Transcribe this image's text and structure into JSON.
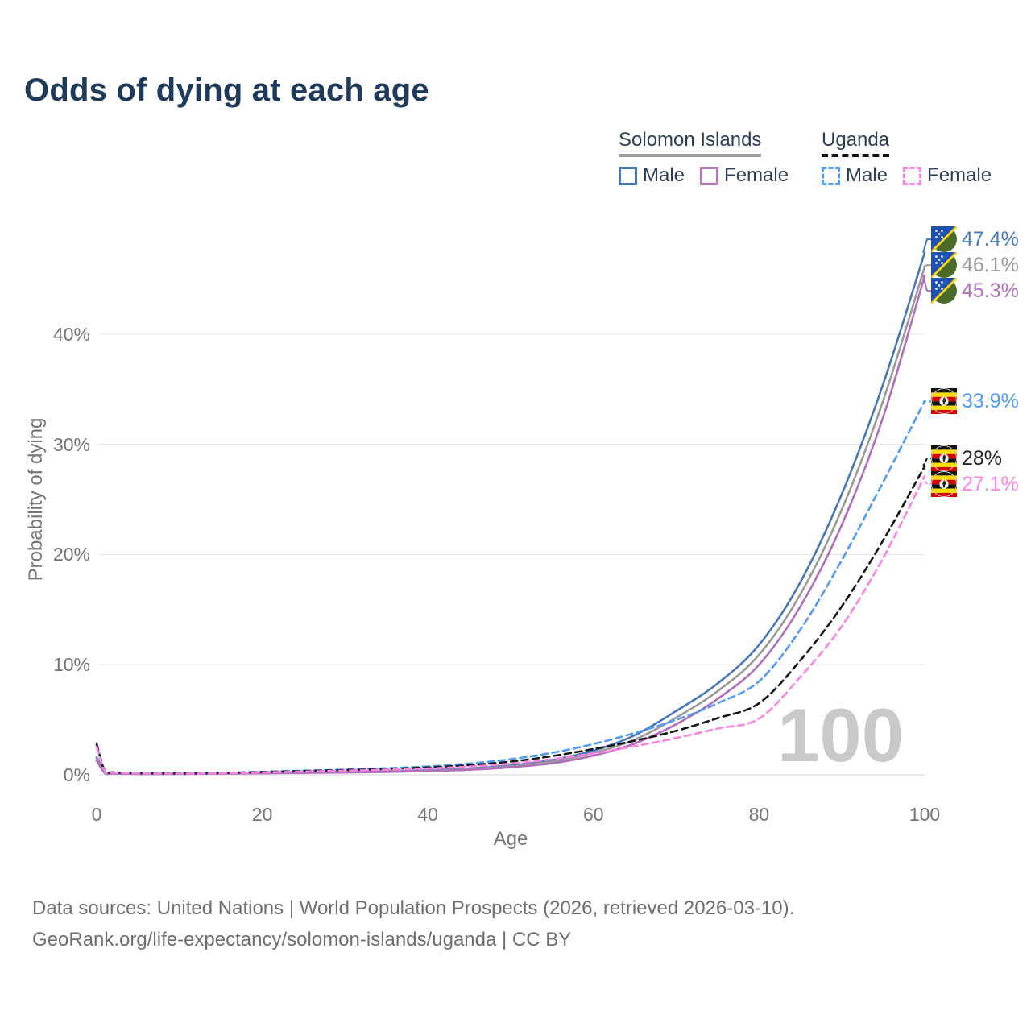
{
  "header": {
    "title": "Odds of dying at each age"
  },
  "legend": {
    "groups": [
      {
        "country": "Solomon Islands",
        "line_style": "solid",
        "underline_color": "#9e9e9e",
        "items": [
          {
            "label": "Male",
            "color": "#4577bd",
            "dashed": false
          },
          {
            "label": "Female",
            "color": "#b679b6",
            "dashed": false
          }
        ]
      },
      {
        "country": "Uganda",
        "line_style": "dashed",
        "underline_color": "#111111",
        "items": [
          {
            "label": "Male",
            "color": "#4f9bf7",
            "dashed": true
          },
          {
            "label": "Female",
            "color": "#ff82e2",
            "dashed": true
          }
        ]
      }
    ]
  },
  "chart_data": {
    "type": "line",
    "title": "Odds of dying at each age",
    "xlabel": "Age",
    "ylabel": "Probability of dying",
    "xlim": [
      0,
      100
    ],
    "ylim": [
      0,
      48
    ],
    "x_ticks": [
      {
        "label": "0",
        "value": 0
      },
      {
        "label": "20",
        "value": 20
      },
      {
        "label": "40",
        "value": 40
      },
      {
        "label": "60",
        "value": 60
      },
      {
        "label": "80",
        "value": 80
      },
      {
        "label": "100",
        "value": 100
      }
    ],
    "y_ticks": [
      {
        "label": "0%",
        "value": 0
      },
      {
        "label": "10%",
        "value": 10
      },
      {
        "label": "20%",
        "value": 20
      },
      {
        "label": "30%",
        "value": 30
      },
      {
        "label": "40%",
        "value": 40
      }
    ],
    "grid": "horizontal",
    "legend_position": "top-right",
    "watermark": "100",
    "series": [
      {
        "name": "Solomon Islands — Male",
        "country": "Solomon Islands",
        "sex": "Male",
        "style": "solid",
        "color": "#4577bd",
        "label_color": "#4577bd",
        "flag": "solomon-islands",
        "end_label": "47.4%",
        "end_value": 47.4,
        "points": [
          [
            0,
            1.6
          ],
          [
            1,
            0.2
          ],
          [
            2,
            0.14
          ],
          [
            5,
            0.1
          ],
          [
            10,
            0.1
          ],
          [
            15,
            0.13
          ],
          [
            20,
            0.18
          ],
          [
            25,
            0.22
          ],
          [
            30,
            0.27
          ],
          [
            35,
            0.33
          ],
          [
            40,
            0.42
          ],
          [
            45,
            0.58
          ],
          [
            50,
            0.85
          ],
          [
            55,
            1.35
          ],
          [
            60,
            2.2
          ],
          [
            65,
            3.6
          ],
          [
            70,
            5.8
          ],
          [
            75,
            8.3
          ],
          [
            80,
            11.8
          ],
          [
            85,
            17.5
          ],
          [
            90,
            25.5
          ],
          [
            95,
            35.5
          ],
          [
            100,
            47.4
          ]
        ]
      },
      {
        "name": "Solomon Islands — Both sexes",
        "country": "Solomon Islands",
        "sex": "Both sexes",
        "style": "solid",
        "color": "#9a9a9a",
        "label_color": "#9a9a9a",
        "flag": "solomon-islands",
        "end_label": "46.1%",
        "end_value": 46.1,
        "points": [
          [
            0,
            1.45
          ],
          [
            1,
            0.18
          ],
          [
            2,
            0.13
          ],
          [
            5,
            0.09
          ],
          [
            10,
            0.09
          ],
          [
            15,
            0.12
          ],
          [
            20,
            0.16
          ],
          [
            25,
            0.2
          ],
          [
            30,
            0.24
          ],
          [
            35,
            0.3
          ],
          [
            40,
            0.38
          ],
          [
            45,
            0.52
          ],
          [
            50,
            0.77
          ],
          [
            55,
            1.2
          ],
          [
            60,
            2.0
          ],
          [
            65,
            3.2
          ],
          [
            70,
            5.2
          ],
          [
            75,
            7.6
          ],
          [
            80,
            10.9
          ],
          [
            85,
            16.4
          ],
          [
            90,
            24.1
          ],
          [
            95,
            34.0
          ],
          [
            100,
            46.1
          ]
        ]
      },
      {
        "name": "Solomon Islands — Female",
        "country": "Solomon Islands",
        "sex": "Female",
        "style": "solid",
        "color": "#b06fbb",
        "label_color": "#b06fbb",
        "flag": "solomon-islands",
        "end_label": "45.3%",
        "end_value": 45.3,
        "points": [
          [
            0,
            1.3
          ],
          [
            1,
            0.16
          ],
          [
            2,
            0.11
          ],
          [
            5,
            0.08
          ],
          [
            10,
            0.08
          ],
          [
            15,
            0.1
          ],
          [
            20,
            0.14
          ],
          [
            25,
            0.17
          ],
          [
            30,
            0.21
          ],
          [
            35,
            0.26
          ],
          [
            40,
            0.34
          ],
          [
            45,
            0.46
          ],
          [
            50,
            0.69
          ],
          [
            55,
            1.05
          ],
          [
            60,
            1.75
          ],
          [
            65,
            2.85
          ],
          [
            70,
            4.6
          ],
          [
            75,
            6.9
          ],
          [
            80,
            10.0
          ],
          [
            85,
            15.3
          ],
          [
            90,
            22.7
          ],
          [
            95,
            32.5
          ],
          [
            100,
            45.3
          ]
        ]
      },
      {
        "name": "Uganda — Male",
        "country": "Uganda",
        "sex": "Male",
        "style": "dashed",
        "color": "#4f9bf7",
        "label_color": "#4f9bf7",
        "flag": "uganda",
        "end_label": "33.9%",
        "end_value": 33.9,
        "points": [
          [
            0,
            2.9
          ],
          [
            1,
            0.35
          ],
          [
            2,
            0.24
          ],
          [
            5,
            0.15
          ],
          [
            10,
            0.13
          ],
          [
            15,
            0.18
          ],
          [
            20,
            0.28
          ],
          [
            25,
            0.38
          ],
          [
            30,
            0.48
          ],
          [
            35,
            0.6
          ],
          [
            40,
            0.76
          ],
          [
            45,
            1.02
          ],
          [
            50,
            1.42
          ],
          [
            55,
            2.0
          ],
          [
            60,
            2.8
          ],
          [
            65,
            3.8
          ],
          [
            70,
            5.0
          ],
          [
            75,
            6.5
          ],
          [
            80,
            8.5
          ],
          [
            85,
            13.2
          ],
          [
            90,
            19.5
          ],
          [
            95,
            26.6
          ],
          [
            100,
            33.9
          ]
        ]
      },
      {
        "name": "Uganda — Both sexes",
        "country": "Uganda",
        "sex": "Both sexes",
        "style": "dashed",
        "color": "#141414",
        "label_color": "#222222",
        "flag": "uganda",
        "end_label": "28%",
        "end_value": 28,
        "points": [
          [
            0,
            2.75
          ],
          [
            1,
            0.33
          ],
          [
            2,
            0.22
          ],
          [
            5,
            0.14
          ],
          [
            10,
            0.12
          ],
          [
            15,
            0.16
          ],
          [
            20,
            0.25
          ],
          [
            25,
            0.34
          ],
          [
            30,
            0.43
          ],
          [
            35,
            0.54
          ],
          [
            40,
            0.67
          ],
          [
            45,
            0.88
          ],
          [
            50,
            1.2
          ],
          [
            55,
            1.7
          ],
          [
            60,
            2.35
          ],
          [
            65,
            3.1
          ],
          [
            70,
            4.0
          ],
          [
            75,
            5.15
          ],
          [
            80,
            6.5
          ],
          [
            85,
            10.4
          ],
          [
            90,
            15.3
          ],
          [
            95,
            21.3
          ],
          [
            100,
            28.0
          ]
        ]
      },
      {
        "name": "Uganda — Female",
        "country": "Uganda",
        "sex": "Female",
        "style": "dashed",
        "color": "#ff82e2",
        "label_color": "#ff82e2",
        "flag": "uganda",
        "end_label": "27.1%",
        "end_value": 27.1,
        "points": [
          [
            0,
            2.55
          ],
          [
            1,
            0.3
          ],
          [
            2,
            0.2
          ],
          [
            5,
            0.13
          ],
          [
            10,
            0.11
          ],
          [
            15,
            0.14
          ],
          [
            20,
            0.22
          ],
          [
            25,
            0.3
          ],
          [
            30,
            0.38
          ],
          [
            35,
            0.47
          ],
          [
            40,
            0.58
          ],
          [
            45,
            0.75
          ],
          [
            50,
            1.02
          ],
          [
            55,
            1.42
          ],
          [
            60,
            1.95
          ],
          [
            65,
            2.6
          ],
          [
            70,
            3.35
          ],
          [
            75,
            4.2
          ],
          [
            80,
            5.1
          ],
          [
            85,
            8.9
          ],
          [
            90,
            13.5
          ],
          [
            95,
            19.7
          ],
          [
            100,
            27.1
          ]
        ]
      }
    ]
  },
  "footer": {
    "line1": "Data sources: United Nations | World Population Prospects (2026, retrieved 2026-03-10).",
    "line2": "GeoRank.org/life-expectancy/solomon-islands/uganda | CC BY"
  }
}
